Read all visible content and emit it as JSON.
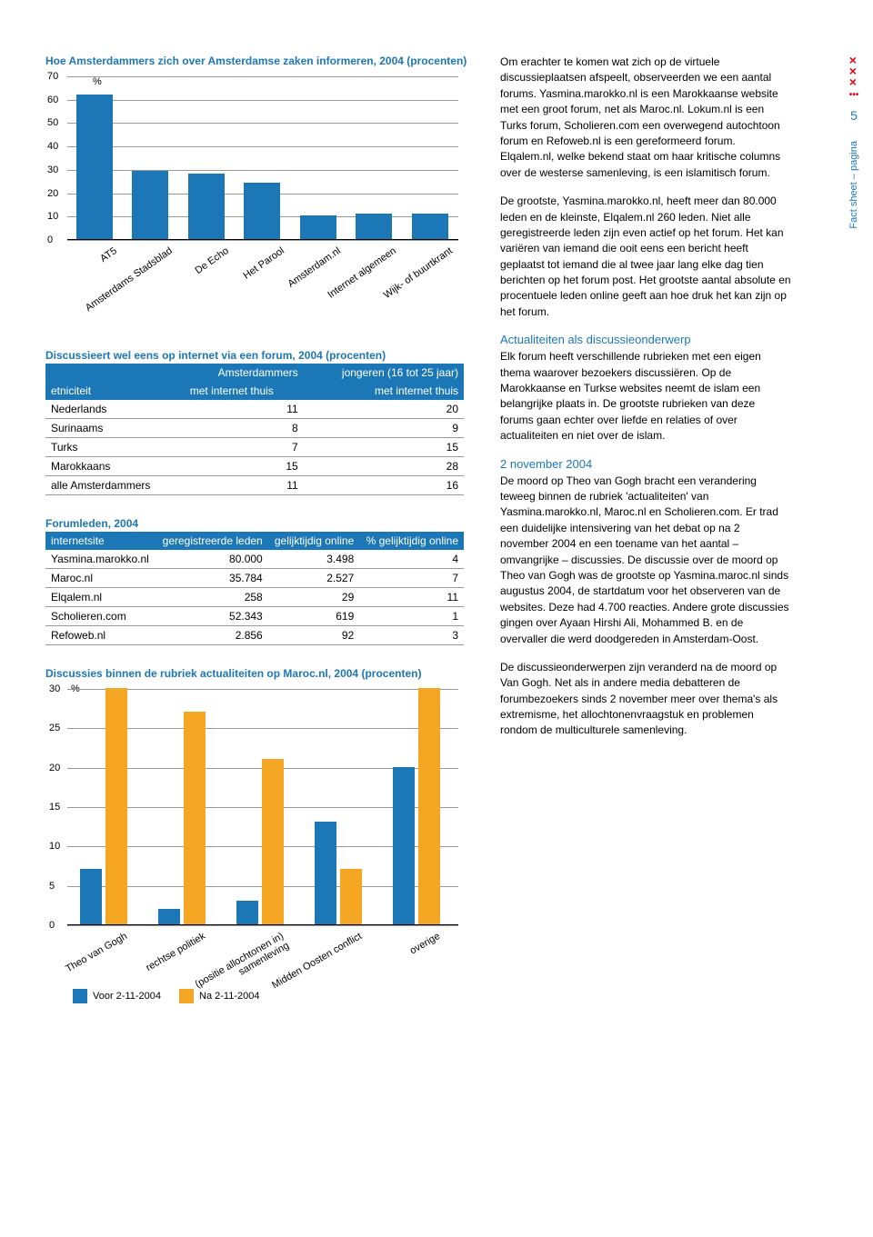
{
  "side": {
    "page_label": "Fact sheet – pagina",
    "page_num": "5"
  },
  "colors": {
    "blue": "#1c77b7",
    "orange": "#f5a623",
    "border": "#999999",
    "bg": "#ffffff"
  },
  "chart1": {
    "title": "Hoe Amsterdammers zich over Amsterdamse zaken informeren, 2004 (procenten)",
    "type": "bar",
    "ylim": [
      0,
      70
    ],
    "ytick_step": 10,
    "pct_label": "%",
    "categories": [
      "AT5",
      "Amsterdams Stadsblad",
      "De Echo",
      "Het Parool",
      "Amsterdam.nl",
      "Internet algemeen",
      "Wijk- of buurtkrant"
    ],
    "values": [
      62,
      29,
      28,
      24,
      10,
      11,
      11
    ],
    "bar_color": "#1c77b7"
  },
  "table1": {
    "title": "Discussieert wel eens op internet via een forum, 2004 (procenten)",
    "head_left": "etniciteit",
    "head_c1a": "Amsterdammers",
    "head_c1b": "met internet thuis",
    "head_c2a": "jongeren (16 tot 25 jaar)",
    "head_c2b": "met internet thuis",
    "rows": [
      {
        "label": "Nederlands",
        "v1": "11",
        "v2": "20"
      },
      {
        "label": "Surinaams",
        "v1": "8",
        "v2": "9"
      },
      {
        "label": "Turks",
        "v1": "7",
        "v2": "15"
      },
      {
        "label": "Marokkaans",
        "v1": "15",
        "v2": "28"
      },
      {
        "label": "alle Amsterdammers",
        "v1": "11",
        "v2": "16"
      }
    ]
  },
  "table2": {
    "title": "Forumleden, 2004",
    "head": [
      "internetsite",
      "geregistreerde leden",
      "gelijktijdig online",
      "% gelijktijdig online"
    ],
    "rows": [
      {
        "c0": "Yasmina.marokko.nl",
        "c1": "80.000",
        "c2": "3.498",
        "c3": "4"
      },
      {
        "c0": "Maroc.nl",
        "c1": "35.784",
        "c2": "2.527",
        "c3": "7"
      },
      {
        "c0": "Elqalem.nl",
        "c1": "258",
        "c2": "29",
        "c3": "11"
      },
      {
        "c0": "Scholieren.com",
        "c1": "52.343",
        "c2": "619",
        "c3": "1"
      },
      {
        "c0": "Refoweb.nl",
        "c1": "2.856",
        "c2": "92",
        "c3": "3"
      }
    ]
  },
  "chart2": {
    "title": "Discussies binnen de rubriek actualiteiten op Maroc.nl, 2004 (procenten)",
    "type": "grouped-bar",
    "ylim": [
      0,
      30
    ],
    "ytick_step": 5,
    "pct_label": "%",
    "categories": [
      "Theo van Gogh",
      "rechtse politiek",
      "(positie allochtonen in) samenleving",
      "Midden Oosten conflict",
      "overige"
    ],
    "series": [
      {
        "label": "Voor 2-11-2004",
        "color": "#1c77b7",
        "values": [
          7,
          2,
          3,
          13,
          20
        ]
      },
      {
        "label": "Na 2-11-2004",
        "color": "#f5a623",
        "values": [
          30,
          27,
          21,
          7,
          30
        ]
      }
    ]
  },
  "text": {
    "p1": "Om erachter te komen wat zich op de virtuele discussieplaatsen afspeelt, observeerden we een aantal forums. Yasmina.marokko.nl is een Marokkaanse website met een groot forum, net als Maroc.nl. Lokum.nl is een Turks forum, Scholieren.com een overwegend autochtoon forum en Refoweb.nl is een gereformeerd forum. Elqalem.nl, welke bekend staat om haar kritische columns over de westerse samenleving, is een islamitisch forum.",
    "p2": "De grootste, Yasmina.marokko.nl, heeft meer dan 80.000 leden en de kleinste, Elqalem.nl 260 leden. Niet alle geregistreerde leden zijn even actief op het forum. Het kan variëren van iemand die ooit eens een bericht heeft geplaatst tot iemand die al twee jaar lang elke dag tien berichten op het forum post. Het grootste aantal absolute en procentuele leden online geeft aan hoe druk het kan zijn op het forum.",
    "h1": "Actualiteiten als discussieonderwerp",
    "p3": "Elk forum heeft verschillende rubrieken met een eigen thema waarover bezoekers discussiëren. Op de Marokkaanse en Turkse websites neemt de islam een belangrijke plaats in. De grootste rubrieken van deze forums gaan echter over liefde en relaties of over actualiteiten en niet over de islam.",
    "h2": "2 november 2004",
    "p4": "De moord op Theo van Gogh bracht een verandering teweeg binnen de rubriek 'actualiteiten' van Yasmina.marokko.nl, Maroc.nl en Scholieren.com. Er trad een duidelijke intensivering van het debat op na 2 november 2004 en een toename van het aantal – omvangrijke – discussies. De discussie over de moord op Theo van Gogh was de grootste op Yasmina.maroc.nl sinds augustus 2004, de startdatum voor het observeren van de websites. Deze had 4.700 reacties. Andere grote discussies gingen over Ayaan Hirshi Ali, Mohammed B. en de overvaller die werd doodgereden in Amsterdam-Oost.",
    "p5": "De discussieonderwerpen zijn veranderd na de moord op Van Gogh. Net als in andere media debatteren de forumbezoekers sinds 2 november meer over thema's als extremisme, het allochtonenvraagstuk en problemen rondom de multiculturele samenleving."
  }
}
